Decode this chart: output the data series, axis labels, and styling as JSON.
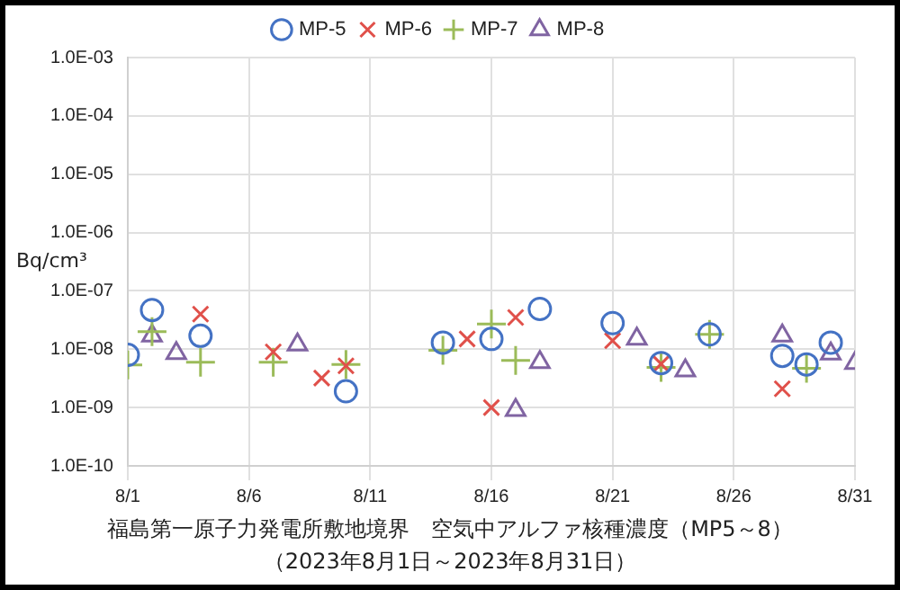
{
  "chart_data": {
    "type": "scatter",
    "title": "福島第一原子力発電所敷地境界　空気中アルファ核種濃度（MP5～8）",
    "subtitle": "（2023年8月1日～2023年8月31日）",
    "ylabel": "Bq/cm³",
    "log": "y",
    "grid": true,
    "legend": "top",
    "xlim": [
      "2023-08-01",
      "2023-08-31"
    ],
    "xticks": [
      {
        "value": "2023-08-01",
        "label": "8/1"
      },
      {
        "value": "2023-08-06",
        "label": "8/6"
      },
      {
        "value": "2023-08-11",
        "label": "8/11"
      },
      {
        "value": "2023-08-16",
        "label": "8/16"
      },
      {
        "value": "2023-08-21",
        "label": "8/21"
      },
      {
        "value": "2023-08-26",
        "label": "8/26"
      },
      {
        "value": "2023-08-31",
        "label": "8/31"
      }
    ],
    "ylim": [
      1e-10,
      0.001
    ],
    "yticks": [
      {
        "value": 1e-10,
        "label": "1.0E-10"
      },
      {
        "value": 1e-09,
        "label": "1.0E-09"
      },
      {
        "value": 1e-08,
        "label": "1.0E-08"
      },
      {
        "value": 1e-07,
        "label": "1.0E-07"
      },
      {
        "value": 1e-06,
        "label": "1.0E-06"
      },
      {
        "value": 1e-05,
        "label": "1.0E-05"
      },
      {
        "value": 0.0001,
        "label": "1.0E-04"
      },
      {
        "value": 0.001,
        "label": "1.0E-03"
      }
    ],
    "series": [
      {
        "name": "MP-5",
        "color": "#4472c4",
        "marker": "circle",
        "x": [
          "2023-08-01",
          "2023-08-02",
          "2023-08-04",
          "2023-08-10",
          "2023-08-14",
          "2023-08-16",
          "2023-08-18",
          "2023-08-21",
          "2023-08-23",
          "2023-08-25",
          "2023-08-28",
          "2023-08-29",
          "2023-08-30"
        ],
        "values": [
          8e-09,
          4.7e-08,
          1.7e-08,
          1.9e-09,
          1.3e-08,
          1.5e-08,
          4.9e-08,
          2.8e-08,
          5.8e-09,
          1.8e-08,
          7.7e-09,
          5.5e-09,
          1.3e-08
        ]
      },
      {
        "name": "MP-6",
        "color": "#e0504a",
        "marker": "cross",
        "x": [
          "2023-08-04",
          "2023-08-07",
          "2023-08-09",
          "2023-08-10",
          "2023-08-15",
          "2023-08-16",
          "2023-08-17",
          "2023-08-21",
          "2023-08-23",
          "2023-08-28"
        ],
        "values": [
          4e-08,
          9e-09,
          3.2e-09,
          5.2e-09,
          1.5e-08,
          1e-09,
          3.5e-08,
          1.4e-08,
          5.6e-09,
          2.1e-09
        ]
      },
      {
        "name": "MP-7",
        "color": "#9bbb59",
        "marker": "plus",
        "x": [
          "2023-08-01",
          "2023-08-02",
          "2023-08-04",
          "2023-08-07",
          "2023-08-10",
          "2023-08-14",
          "2023-08-16",
          "2023-08-17",
          "2023-08-23",
          "2023-08-25",
          "2023-08-29"
        ],
        "values": [
          5.4e-09,
          2e-08,
          6e-09,
          6e-09,
          5.5e-09,
          9.6e-09,
          2.7e-08,
          6.4e-09,
          4.9e-09,
          1.8e-08,
          4.7e-09
        ]
      },
      {
        "name": "MP-8",
        "color": "#8064a2",
        "marker": "triangle",
        "x": [
          "2023-08-02",
          "2023-08-03",
          "2023-08-08",
          "2023-08-17",
          "2023-08-18",
          "2023-08-22",
          "2023-08-24",
          "2023-08-28",
          "2023-08-30",
          "2023-08-31"
        ],
        "values": [
          1.7e-08,
          8.5e-09,
          1.2e-08,
          9e-10,
          6e-09,
          1.5e-08,
          4.3e-09,
          1.7e-08,
          8.4e-09,
          5.8e-09
        ]
      }
    ]
  }
}
